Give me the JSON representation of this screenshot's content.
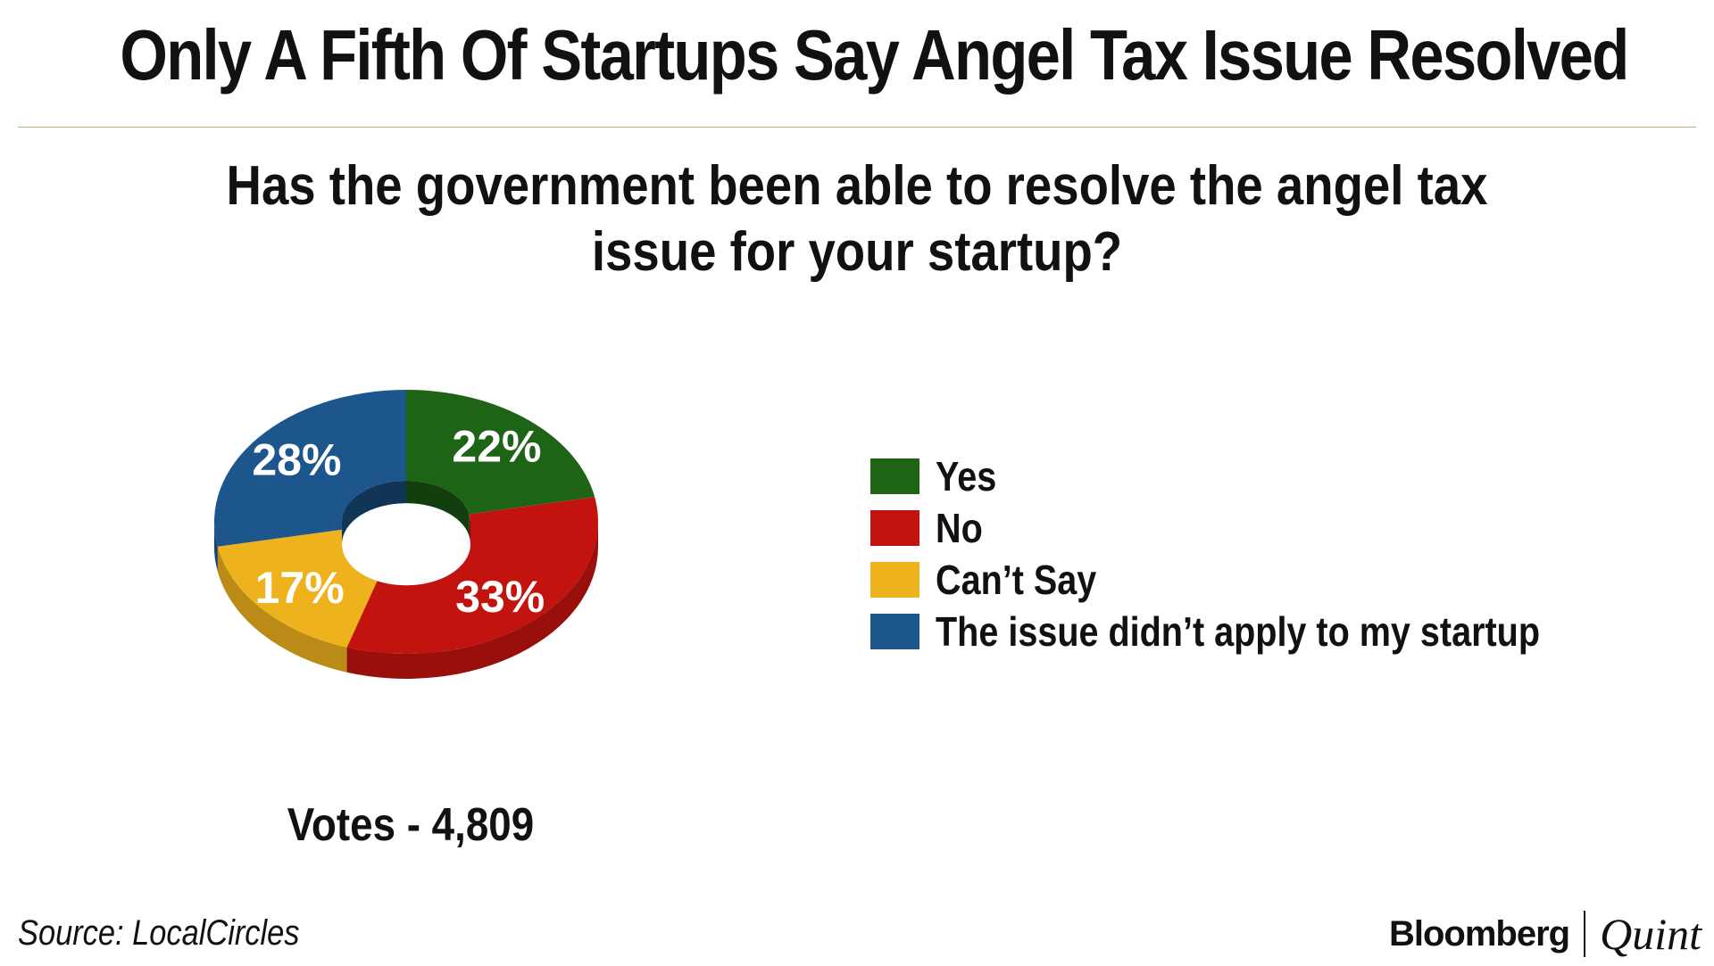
{
  "chart_data": {
    "type": "pie",
    "variant": "donut-3d",
    "title": "Only A Fifth Of Startups Say Angel Tax Issue Resolved",
    "subtitle_lines": [
      "Has the government been able to resolve the angel tax",
      "issue for your startup?"
    ],
    "slices": [
      {
        "name": "Yes",
        "value": 22,
        "label": "22%",
        "color": "#1e6417"
      },
      {
        "name": "No",
        "value": 33,
        "label": "33%",
        "color": "#c3130f"
      },
      {
        "name": "Can’t Say",
        "value": 17,
        "label": "17%",
        "color": "#eeb21c"
      },
      {
        "name": "The issue didn’t apply to my startup",
        "value": 28,
        "label": "28%",
        "color": "#1c568c"
      }
    ],
    "start_angle_deg": 0,
    "direction": "clockwise",
    "legend_position": "right",
    "note": "Votes - 4,809"
  },
  "footer": {
    "source": "Source: LocalCircles",
    "brand_primary": "Bloomberg",
    "brand_secondary": "Quint"
  }
}
